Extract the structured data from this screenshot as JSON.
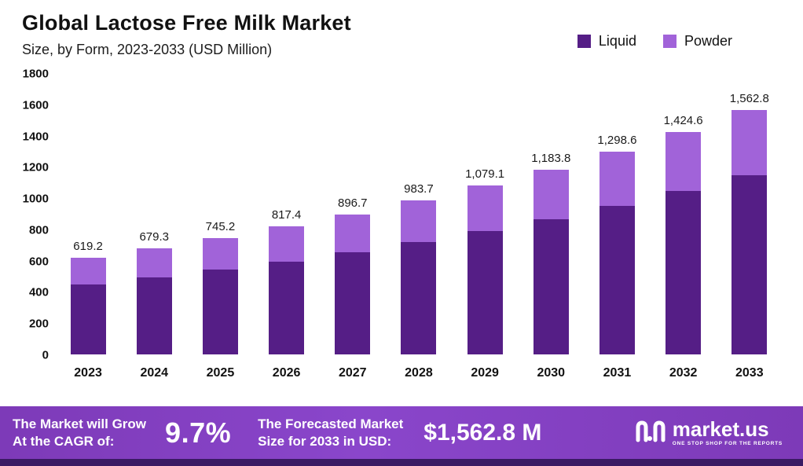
{
  "header": {
    "title": "Global Lactose Free Milk Market",
    "subtitle": "Size, by Form, 2023-2033 (USD Million)"
  },
  "chart_data": {
    "type": "bar",
    "stacked": true,
    "title": "Global Lactose Free Milk Market Size, by Form, 2023-2033 (USD Million)",
    "categories": [
      "2023",
      "2024",
      "2025",
      "2026",
      "2027",
      "2028",
      "2029",
      "2030",
      "2031",
      "2032",
      "2033"
    ],
    "series": [
      {
        "name": "Liquid",
        "color": "#551e86",
        "values": [
          450,
          495,
          545,
          595,
          655,
          720,
          790,
          865,
          950,
          1045,
          1145
        ]
      },
      {
        "name": "Powder",
        "color": "#a163d9",
        "values": [
          169.2,
          184.3,
          200.2,
          222.4,
          241.7,
          263.7,
          289.1,
          318.8,
          348.6,
          379.6,
          417.8
        ]
      }
    ],
    "totals": [
      619.2,
      679.3,
      745.2,
      817.4,
      896.7,
      983.7,
      1079.1,
      1183.8,
      1298.6,
      1424.6,
      1562.8
    ],
    "total_labels": [
      "619.2",
      "679.3",
      "745.2",
      "817.4",
      "896.7",
      "983.7",
      "1,079.1",
      "1,183.8",
      "1,298.6",
      "1,424.6",
      "1,562.8"
    ],
    "xlabel": "",
    "ylabel": "",
    "ylim": [
      0,
      1800
    ],
    "ytick_step": 200,
    "grid": false,
    "legend_position": "top-right"
  },
  "footer": {
    "cagr_label_line1": "The Market will Grow",
    "cagr_label_line2": "At the CAGR of:",
    "cagr_value": "9.7%",
    "forecast_label_line1": "The Forecasted Market",
    "forecast_label_line2": "Size for 2033 in USD:",
    "forecast_value": "$1,562.8 M",
    "brand": {
      "name": "market.us",
      "tagline": "ONE STOP SHOP FOR THE REPORTS"
    }
  }
}
